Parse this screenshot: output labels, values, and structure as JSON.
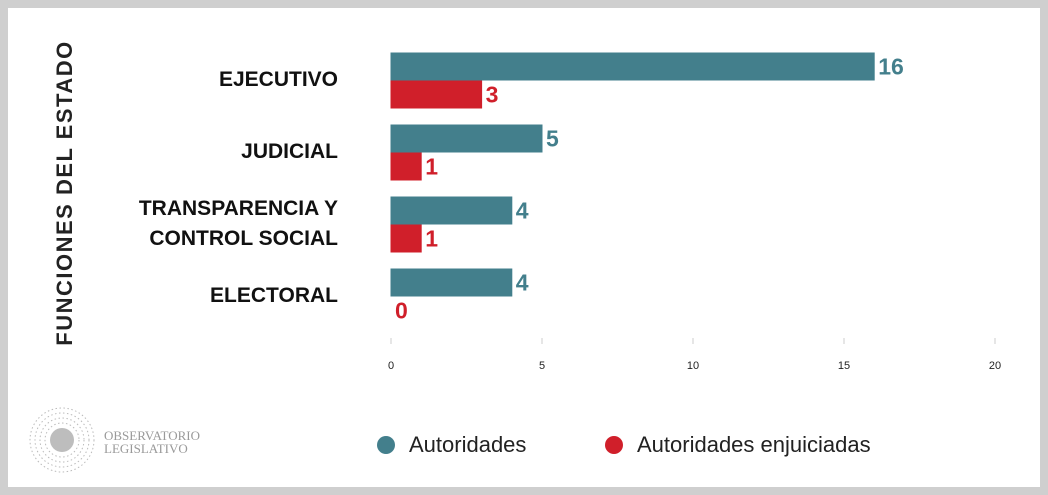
{
  "chart_data": {
    "type": "hbar",
    "y_label": "FUNCIONES DEL ESTADO",
    "categories": [
      "EJECUTIVO",
      "JUDICIAL ",
      "TRANSPARENCIA Y\nCONTROL SOCIAL",
      "ELECTORAL "
    ],
    "series": [
      {
        "name": "Autoridades",
        "color": "#437f8c",
        "values": [
          16,
          5,
          4,
          4
        ]
      },
      {
        "name": "Autoridades enjuiciadas",
        "color": "#d01f2a",
        "values": [
          3,
          1,
          1,
          0
        ]
      }
    ],
    "xlim": [
      0,
      20
    ],
    "xticks": [
      0,
      5,
      10,
      15,
      20
    ],
    "grid": false,
    "legend": "bottom",
    "logo_text": [
      "OBSERVATORIO",
      "LEGISLATIVO"
    ]
  }
}
